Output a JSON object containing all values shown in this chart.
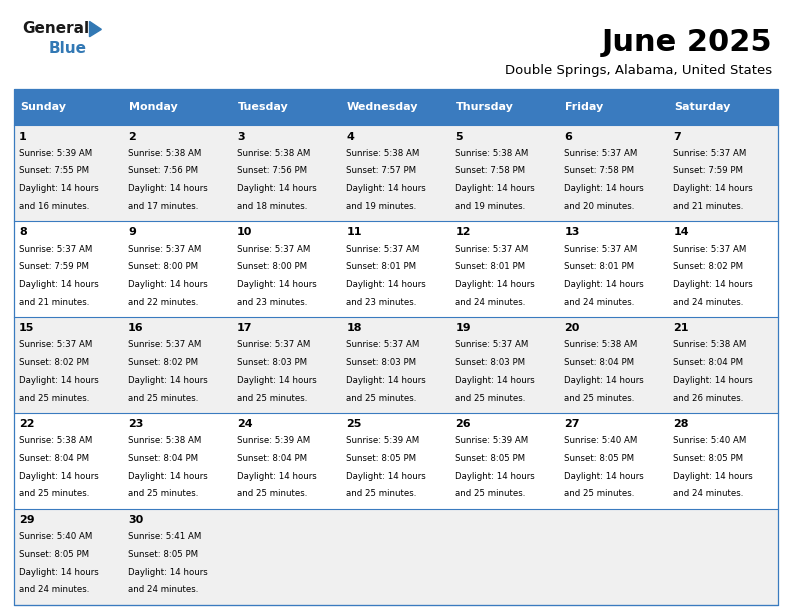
{
  "title": "June 2025",
  "subtitle": "Double Springs, Alabama, United States",
  "header_color": "#3a7bbf",
  "header_text_color": "#ffffff",
  "days_of_week": [
    "Sunday",
    "Monday",
    "Tuesday",
    "Wednesday",
    "Thursday",
    "Friday",
    "Saturday"
  ],
  "weeks": [
    [
      {
        "day": 1,
        "sunrise": "5:39 AM",
        "sunset": "7:55 PM",
        "daylight_hours": 14,
        "daylight_minutes": 16
      },
      {
        "day": 2,
        "sunrise": "5:38 AM",
        "sunset": "7:56 PM",
        "daylight_hours": 14,
        "daylight_minutes": 17
      },
      {
        "day": 3,
        "sunrise": "5:38 AM",
        "sunset": "7:56 PM",
        "daylight_hours": 14,
        "daylight_minutes": 18
      },
      {
        "day": 4,
        "sunrise": "5:38 AM",
        "sunset": "7:57 PM",
        "daylight_hours": 14,
        "daylight_minutes": 19
      },
      {
        "day": 5,
        "sunrise": "5:38 AM",
        "sunset": "7:58 PM",
        "daylight_hours": 14,
        "daylight_minutes": 19
      },
      {
        "day": 6,
        "sunrise": "5:37 AM",
        "sunset": "7:58 PM",
        "daylight_hours": 14,
        "daylight_minutes": 20
      },
      {
        "day": 7,
        "sunrise": "5:37 AM",
        "sunset": "7:59 PM",
        "daylight_hours": 14,
        "daylight_minutes": 21
      }
    ],
    [
      {
        "day": 8,
        "sunrise": "5:37 AM",
        "sunset": "7:59 PM",
        "daylight_hours": 14,
        "daylight_minutes": 21
      },
      {
        "day": 9,
        "sunrise": "5:37 AM",
        "sunset": "8:00 PM",
        "daylight_hours": 14,
        "daylight_minutes": 22
      },
      {
        "day": 10,
        "sunrise": "5:37 AM",
        "sunset": "8:00 PM",
        "daylight_hours": 14,
        "daylight_minutes": 23
      },
      {
        "day": 11,
        "sunrise": "5:37 AM",
        "sunset": "8:01 PM",
        "daylight_hours": 14,
        "daylight_minutes": 23
      },
      {
        "day": 12,
        "sunrise": "5:37 AM",
        "sunset": "8:01 PM",
        "daylight_hours": 14,
        "daylight_minutes": 24
      },
      {
        "day": 13,
        "sunrise": "5:37 AM",
        "sunset": "8:01 PM",
        "daylight_hours": 14,
        "daylight_minutes": 24
      },
      {
        "day": 14,
        "sunrise": "5:37 AM",
        "sunset": "8:02 PM",
        "daylight_hours": 14,
        "daylight_minutes": 24
      }
    ],
    [
      {
        "day": 15,
        "sunrise": "5:37 AM",
        "sunset": "8:02 PM",
        "daylight_hours": 14,
        "daylight_minutes": 25
      },
      {
        "day": 16,
        "sunrise": "5:37 AM",
        "sunset": "8:02 PM",
        "daylight_hours": 14,
        "daylight_minutes": 25
      },
      {
        "day": 17,
        "sunrise": "5:37 AM",
        "sunset": "8:03 PM",
        "daylight_hours": 14,
        "daylight_minutes": 25
      },
      {
        "day": 18,
        "sunrise": "5:37 AM",
        "sunset": "8:03 PM",
        "daylight_hours": 14,
        "daylight_minutes": 25
      },
      {
        "day": 19,
        "sunrise": "5:37 AM",
        "sunset": "8:03 PM",
        "daylight_hours": 14,
        "daylight_minutes": 25
      },
      {
        "day": 20,
        "sunrise": "5:38 AM",
        "sunset": "8:04 PM",
        "daylight_hours": 14,
        "daylight_minutes": 25
      },
      {
        "day": 21,
        "sunrise": "5:38 AM",
        "sunset": "8:04 PM",
        "daylight_hours": 14,
        "daylight_minutes": 26
      }
    ],
    [
      {
        "day": 22,
        "sunrise": "5:38 AM",
        "sunset": "8:04 PM",
        "daylight_hours": 14,
        "daylight_minutes": 25
      },
      {
        "day": 23,
        "sunrise": "5:38 AM",
        "sunset": "8:04 PM",
        "daylight_hours": 14,
        "daylight_minutes": 25
      },
      {
        "day": 24,
        "sunrise": "5:39 AM",
        "sunset": "8:04 PM",
        "daylight_hours": 14,
        "daylight_minutes": 25
      },
      {
        "day": 25,
        "sunrise": "5:39 AM",
        "sunset": "8:05 PM",
        "daylight_hours": 14,
        "daylight_minutes": 25
      },
      {
        "day": 26,
        "sunrise": "5:39 AM",
        "sunset": "8:05 PM",
        "daylight_hours": 14,
        "daylight_minutes": 25
      },
      {
        "day": 27,
        "sunrise": "5:40 AM",
        "sunset": "8:05 PM",
        "daylight_hours": 14,
        "daylight_minutes": 25
      },
      {
        "day": 28,
        "sunrise": "5:40 AM",
        "sunset": "8:05 PM",
        "daylight_hours": 14,
        "daylight_minutes": 24
      }
    ],
    [
      {
        "day": 29,
        "sunrise": "5:40 AM",
        "sunset": "8:05 PM",
        "daylight_hours": 14,
        "daylight_minutes": 24
      },
      {
        "day": 30,
        "sunrise": "5:41 AM",
        "sunset": "8:05 PM",
        "daylight_hours": 14,
        "daylight_minutes": 24
      },
      null,
      null,
      null,
      null,
      null
    ]
  ],
  "bg_color": "#ffffff",
  "cell_alt_color": "#f0f0f0",
  "border_color": "#3a7bbf",
  "text_color": "#000000",
  "logo_general_color": "#1a1a1a",
  "logo_blue_color": "#3278b4"
}
